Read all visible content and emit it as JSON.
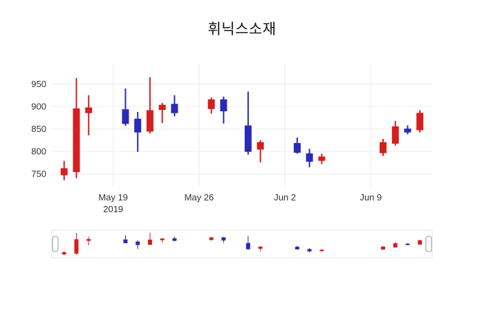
{
  "title": "휘닉스소재",
  "chart_data": {
    "type": "candlestick",
    "title": "휘닉스소재",
    "increasing_color": "#d41f1f",
    "decreasing_color": "#2a2ab5",
    "grid_color": "#ececec",
    "tick_color": "#333333",
    "yrange": [
      725,
      983
    ],
    "yticks": [
      750,
      800,
      850,
      900,
      950
    ],
    "xticks": [
      {
        "date": "2019-05-19",
        "lines": [
          "May 19",
          "2019"
        ]
      },
      {
        "date": "2019-05-26",
        "lines": [
          "May 26"
        ]
      },
      {
        "date": "2019-06-02",
        "lines": [
          "Jun 2"
        ]
      },
      {
        "date": "2019-06-09",
        "lines": [
          "Jun 9"
        ]
      }
    ],
    "legend": "none",
    "rangeslider": true,
    "dates": [
      "2019-05-15",
      "2019-05-16",
      "2019-05-17",
      "2019-05-20",
      "2019-05-21",
      "2019-05-22",
      "2019-05-23",
      "2019-05-24",
      "2019-05-27",
      "2019-05-28",
      "2019-05-30",
      "2019-05-31",
      "2019-06-03",
      "2019-06-04",
      "2019-06-05",
      "2019-06-10",
      "2019-06-11",
      "2019-06-12",
      "2019-06-13"
    ],
    "open": [
      748,
      755,
      886,
      893,
      872,
      845,
      893,
      905,
      895,
      915,
      857,
      805,
      818,
      795,
      780,
      797,
      818,
      850,
      848
    ],
    "high": [
      779,
      963,
      925,
      940,
      888,
      965,
      908,
      925,
      920,
      922,
      933,
      825,
      831,
      806,
      795,
      828,
      868,
      858,
      892
    ],
    "low": [
      736,
      741,
      836,
      857,
      799,
      840,
      863,
      878,
      884,
      862,
      793,
      776,
      795,
      765,
      772,
      790,
      813,
      838,
      842
    ],
    "close": [
      762,
      895,
      897,
      862,
      843,
      891,
      903,
      886,
      915,
      890,
      800,
      820,
      798,
      778,
      788,
      820,
      855,
      843,
      885
    ]
  }
}
